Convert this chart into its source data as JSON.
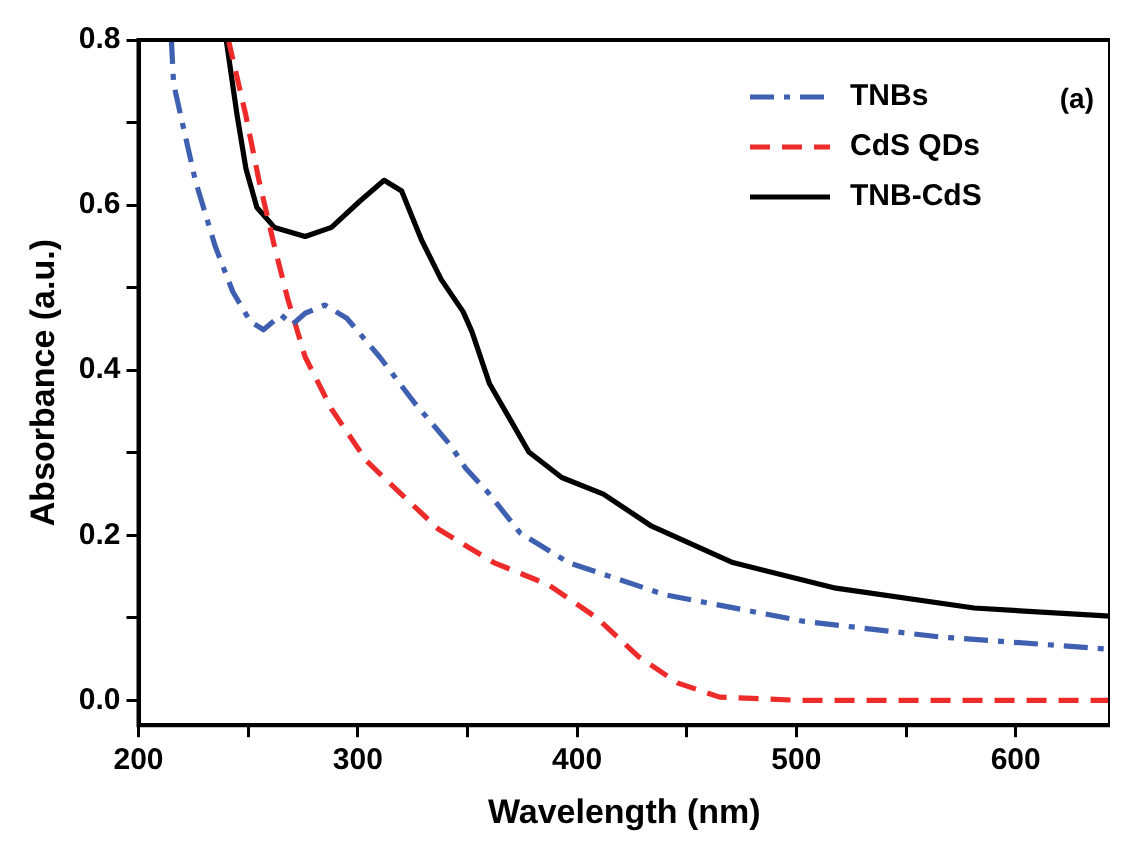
{
  "chart_data": {
    "type": "line",
    "xlabel": "Wavelength (nm)",
    "ylabel": "Absorbance (a.u.)",
    "annotations": [
      "(a)"
    ],
    "xlim": [
      200,
      643
    ],
    "ylim": [
      -0.03,
      0.8
    ],
    "xticks": [
      200,
      {
        "value": 250,
        "label": null
      },
      300,
      {
        "value": 350,
        "label": null
      },
      400,
      {
        "value": 450,
        "label": null
      },
      500,
      {
        "value": 550,
        "label": null
      },
      600
    ],
    "yticks": [
      {
        "value": 0,
        "label": "0.0"
      },
      {
        "value": 0.1,
        "label": null
      },
      {
        "value": 0.2,
        "label": "0.2"
      },
      {
        "value": 0.3,
        "label": null
      },
      {
        "value": 0.4,
        "label": "0.4"
      },
      {
        "value": 0.5,
        "label": null
      },
      {
        "value": 0.6,
        "label": "0.6"
      },
      {
        "value": 0.7,
        "label": null
      },
      {
        "value": 0.8,
        "label": "0.8"
      }
    ],
    "grid": false,
    "legend": "top right",
    "marker": "none",
    "series": [
      {
        "name": "TNBs",
        "color": "#3f5fb0",
        "line_style": "dashdot",
        "x": [
          215,
          216,
          226,
          235,
          243,
          251,
          257,
          265,
          270,
          276,
          285,
          295,
          310,
          326,
          342,
          349,
          360,
          374,
          396,
          440,
          503,
          565,
          643
        ],
        "values": [
          0.8,
          0.747,
          0.629,
          0.55,
          0.495,
          0.459,
          0.449,
          0.467,
          0.455,
          0.469,
          0.479,
          0.463,
          0.416,
          0.36,
          0.31,
          0.282,
          0.25,
          0.203,
          0.167,
          0.128,
          0.096,
          0.077,
          0.062
        ]
      },
      {
        "name": "CdS QDs",
        "color": "#ee2b2b",
        "line_style": "dashed",
        "x": [
          241,
          249,
          255,
          262,
          268,
          276,
          288,
          304,
          323,
          337,
          362,
          387,
          409,
          428,
          446,
          465,
          502,
          643
        ],
        "values": [
          0.8,
          0.708,
          0.629,
          0.55,
          0.487,
          0.416,
          0.353,
          0.29,
          0.242,
          0.207,
          0.167,
          0.14,
          0.1,
          0.053,
          0.021,
          0.004,
          0.0,
          0.0
        ]
      },
      {
        "name": "TNB-CdS",
        "color": "#000000",
        "line_style": "solid",
        "x": [
          240,
          245,
          249,
          254,
          262,
          276,
          288,
          301,
          312,
          320,
          329,
          338,
          348,
          352,
          360,
          378,
          393,
          412,
          434,
          471,
          518,
          581,
          643
        ],
        "values": [
          0.8,
          0.708,
          0.644,
          0.597,
          0.573,
          0.562,
          0.573,
          0.605,
          0.63,
          0.617,
          0.558,
          0.51,
          0.471,
          0.447,
          0.384,
          0.301,
          0.27,
          0.25,
          0.211,
          0.167,
          0.136,
          0.112,
          0.102
        ]
      }
    ]
  }
}
